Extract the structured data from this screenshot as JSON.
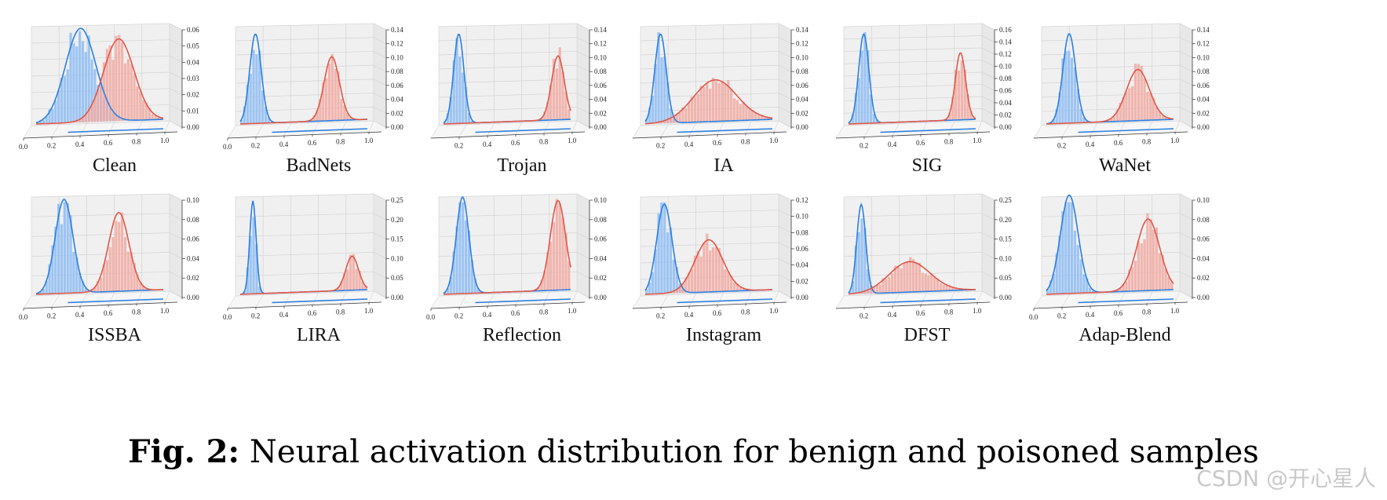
{
  "caption": {
    "label": "Fig. 2:",
    "text": "Neural activation distribution for benign and poisoned samples"
  },
  "watermark": "CSDN @开心星人",
  "colors": {
    "benign": "#2c7fe0",
    "benign_bar": "#8ebcf3",
    "poisoned": "#e0574a",
    "poisoned_bar": "#f1aaa2",
    "pane": "#f0f0f0",
    "grid": "#d4d4d4"
  },
  "chart_data": [
    {
      "type": "histogram-3d",
      "title": "Clean",
      "xticks": [
        "0.0",
        "0.2",
        "0.4",
        "0.6",
        "0.8",
        "1.0"
      ],
      "zticks": [
        "0.00",
        "0.01",
        "0.02",
        "0.03",
        "0.04",
        "0.05",
        "0.06"
      ],
      "zlim": [
        0,
        0.06
      ],
      "series": [
        {
          "name": "benign",
          "mean": 0.35,
          "sd": 0.12,
          "peak": 0.063
        },
        {
          "name": "poisoned",
          "mean": 0.65,
          "sd": 0.12,
          "peak": 0.055
        }
      ]
    },
    {
      "type": "histogram-3d",
      "title": "BadNets",
      "xticks": [
        "0.0",
        "0.2",
        "0.4",
        "0.6",
        "0.8",
        "1.0"
      ],
      "zticks": [
        "0.00",
        "0.02",
        "0.04",
        "0.06",
        "0.08",
        "0.10",
        "0.12",
        "0.14"
      ],
      "zlim": [
        0,
        0.14
      ],
      "series": [
        {
          "name": "benign",
          "mean": 0.12,
          "sd": 0.045,
          "peak": 0.14
        },
        {
          "name": "poisoned",
          "mean": 0.72,
          "sd": 0.06,
          "peak": 0.1
        }
      ]
    },
    {
      "type": "histogram-3d",
      "title": "Trojan",
      "xticks": [
        "0.2",
        "0.4",
        "0.6",
        "0.8",
        "1.0"
      ],
      "zticks": [
        "0.00",
        "0.02",
        "0.04",
        "0.06",
        "0.08",
        "0.10",
        "0.12",
        "0.14"
      ],
      "zlim": [
        0,
        0.14
      ],
      "series": [
        {
          "name": "benign",
          "mean": 0.12,
          "sd": 0.04,
          "peak": 0.14
        },
        {
          "name": "poisoned",
          "mean": 0.9,
          "sd": 0.05,
          "peak": 0.1
        }
      ]
    },
    {
      "type": "histogram-3d",
      "title": "IA",
      "xticks": [
        "0.2",
        "0.4",
        "0.6",
        "0.8",
        "1.0"
      ],
      "zticks": [
        "0.00",
        "0.02",
        "0.04",
        "0.06",
        "0.08",
        "0.10",
        "0.12",
        "0.14"
      ],
      "zlim": [
        0,
        0.14
      ],
      "series": [
        {
          "name": "benign",
          "mean": 0.12,
          "sd": 0.045,
          "peak": 0.14
        },
        {
          "name": "poisoned",
          "mean": 0.55,
          "sd": 0.17,
          "peak": 0.065
        }
      ]
    },
    {
      "type": "histogram-3d",
      "title": "SIG",
      "xticks": [
        "0.2",
        "0.4",
        "0.6",
        "0.8",
        "1.0"
      ],
      "zticks": [
        "0.00",
        "0.02",
        "0.04",
        "0.06",
        "0.08",
        "0.10",
        "0.12",
        "0.14",
        "0.16"
      ],
      "zlim": [
        0,
        0.16
      ],
      "series": [
        {
          "name": "benign",
          "mean": 0.12,
          "sd": 0.04,
          "peak": 0.16
        },
        {
          "name": "poisoned",
          "mean": 0.88,
          "sd": 0.04,
          "peak": 0.12
        }
      ]
    },
    {
      "type": "histogram-3d",
      "title": "WaNet",
      "xticks": [
        "0.2",
        "0.4",
        "0.6",
        "0.8",
        "1.0"
      ],
      "zticks": [
        "0.00",
        "0.02",
        "0.04",
        "0.06",
        "0.08",
        "0.10",
        "0.12",
        "0.14"
      ],
      "zlim": [
        0,
        0.14
      ],
      "series": [
        {
          "name": "benign",
          "mean": 0.18,
          "sd": 0.05,
          "peak": 0.14
        },
        {
          "name": "poisoned",
          "mean": 0.72,
          "sd": 0.09,
          "peak": 0.08
        }
      ]
    },
    {
      "type": "histogram-3d",
      "title": "ISSBA",
      "xticks": [
        "0.0",
        "0.2",
        "0.4",
        "0.6",
        "0.8",
        "1.0"
      ],
      "zticks": [
        "0.00",
        "0.02",
        "0.04",
        "0.06",
        "0.08",
        "0.10"
      ],
      "zlim": [
        0,
        0.1
      ],
      "series": [
        {
          "name": "benign",
          "mean": 0.22,
          "sd": 0.07,
          "peak": 0.105
        },
        {
          "name": "poisoned",
          "mean": 0.65,
          "sd": 0.08,
          "peak": 0.088
        }
      ]
    },
    {
      "type": "histogram-3d",
      "title": "LIRA",
      "xticks": [
        "0.0",
        "0.2",
        "0.4",
        "0.6",
        "0.8",
        "1.0"
      ],
      "zticks": [
        "0.00",
        "0.05",
        "0.10",
        "0.15",
        "0.20",
        "0.25"
      ],
      "zlim": [
        0,
        0.25
      ],
      "series": [
        {
          "name": "benign",
          "mean": 0.1,
          "sd": 0.025,
          "peak": 0.26
        },
        {
          "name": "poisoned",
          "mean": 0.88,
          "sd": 0.05,
          "peak": 0.095
        }
      ]
    },
    {
      "type": "histogram-3d",
      "title": "Reflection",
      "xticks": [
        "0.0",
        "0.2",
        "0.4",
        "0.6",
        "0.8",
        "1.0"
      ],
      "zticks": [
        "0.00",
        "0.02",
        "0.04",
        "0.06",
        "0.08",
        "0.10"
      ],
      "zlim": [
        0,
        0.1
      ],
      "series": [
        {
          "name": "benign",
          "mean": 0.15,
          "sd": 0.05,
          "peak": 0.108
        },
        {
          "name": "poisoned",
          "mean": 0.9,
          "sd": 0.06,
          "peak": 0.1
        }
      ]
    },
    {
      "type": "histogram-3d",
      "title": "Instagram",
      "xticks": [
        "0.2",
        "0.4",
        "0.6",
        "0.8",
        "1.0"
      ],
      "zticks": [
        "0.00",
        "0.02",
        "0.04",
        "0.06",
        "0.08",
        "0.10",
        "0.12"
      ],
      "zlim": [
        0,
        0.12
      ],
      "series": [
        {
          "name": "benign",
          "mean": 0.15,
          "sd": 0.06,
          "peak": 0.12
        },
        {
          "name": "poisoned",
          "mean": 0.5,
          "sd": 0.11,
          "peak": 0.07
        }
      ]
    },
    {
      "type": "histogram-3d",
      "title": "DFST",
      "xticks": [
        "0.2",
        "0.4",
        "0.6",
        "0.8",
        "1.0"
      ],
      "zticks": [
        "0.00",
        "0.05",
        "0.10",
        "0.15",
        "0.20",
        "0.25"
      ],
      "zlim": [
        0,
        0.25
      ],
      "series": [
        {
          "name": "benign",
          "mean": 0.1,
          "sd": 0.035,
          "peak": 0.25
        },
        {
          "name": "poisoned",
          "mean": 0.48,
          "sd": 0.16,
          "peak": 0.085
        }
      ]
    },
    {
      "type": "histogram-3d",
      "title": "Adap-Blend",
      "xticks": [
        "0.0",
        "0.2",
        "0.4",
        "0.6",
        "0.8",
        "1.0"
      ],
      "zticks": [
        "0.00",
        "0.02",
        "0.04",
        "0.06",
        "0.08",
        "0.10"
      ],
      "zlim": [
        0,
        0.1
      ],
      "series": [
        {
          "name": "benign",
          "mean": 0.18,
          "sd": 0.07,
          "peak": 0.11
        },
        {
          "name": "poisoned",
          "mean": 0.8,
          "sd": 0.09,
          "peak": 0.08
        }
      ]
    }
  ]
}
